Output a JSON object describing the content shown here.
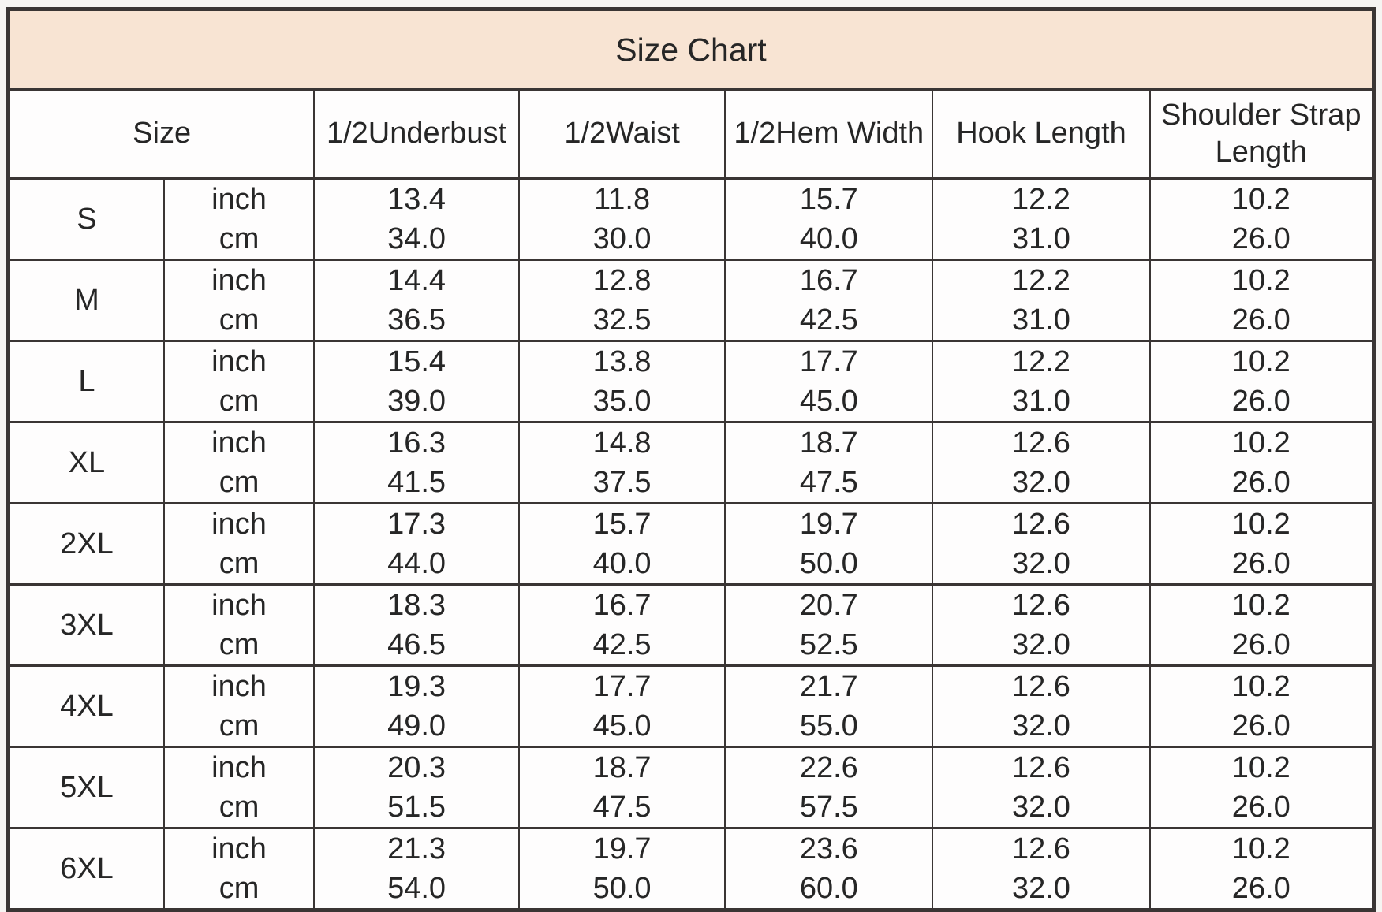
{
  "chart_data": {
    "type": "table",
    "title": "Size Chart",
    "columns": [
      "Size",
      "1/2Underbust",
      "1/2Waist",
      "1/2Hem Width",
      "Hook Length",
      "Shoulder Strap Length"
    ],
    "unit_labels": [
      "inch",
      "cm"
    ],
    "rows": [
      {
        "size": "S",
        "inch": [
          "13.4",
          "11.8",
          "15.7",
          "12.2",
          "10.2"
        ],
        "cm": [
          "34.0",
          "30.0",
          "40.0",
          "31.0",
          "26.0"
        ]
      },
      {
        "size": "M",
        "inch": [
          "14.4",
          "12.8",
          "16.7",
          "12.2",
          "10.2"
        ],
        "cm": [
          "36.5",
          "32.5",
          "42.5",
          "31.0",
          "26.0"
        ]
      },
      {
        "size": "L",
        "inch": [
          "15.4",
          "13.8",
          "17.7",
          "12.2",
          "10.2"
        ],
        "cm": [
          "39.0",
          "35.0",
          "45.0",
          "31.0",
          "26.0"
        ]
      },
      {
        "size": "XL",
        "inch": [
          "16.3",
          "14.8",
          "18.7",
          "12.6",
          "10.2"
        ],
        "cm": [
          "41.5",
          "37.5",
          "47.5",
          "32.0",
          "26.0"
        ]
      },
      {
        "size": "2XL",
        "inch": [
          "17.3",
          "15.7",
          "19.7",
          "12.6",
          "10.2"
        ],
        "cm": [
          "44.0",
          "40.0",
          "50.0",
          "32.0",
          "26.0"
        ]
      },
      {
        "size": "3XL",
        "inch": [
          "18.3",
          "16.7",
          "20.7",
          "12.6",
          "10.2"
        ],
        "cm": [
          "46.5",
          "42.5",
          "52.5",
          "32.0",
          "26.0"
        ]
      },
      {
        "size": "4XL",
        "inch": [
          "19.3",
          "17.7",
          "21.7",
          "12.6",
          "10.2"
        ],
        "cm": [
          "49.0",
          "45.0",
          "55.0",
          "32.0",
          "26.0"
        ]
      },
      {
        "size": "5XL",
        "inch": [
          "20.3",
          "18.7",
          "22.6",
          "12.6",
          "10.2"
        ],
        "cm": [
          "51.5",
          "47.5",
          "57.5",
          "32.0",
          "26.0"
        ]
      },
      {
        "size": "6XL",
        "inch": [
          "21.3",
          "19.7",
          "23.6",
          "12.6",
          "10.2"
        ],
        "cm": [
          "54.0",
          "50.0",
          "60.0",
          "32.0",
          "26.0"
        ]
      }
    ]
  },
  "colors": {
    "title_background": "#f8e4d3",
    "border": "#3a3534",
    "text": "#262626",
    "page_background": "#f6f4f2"
  }
}
